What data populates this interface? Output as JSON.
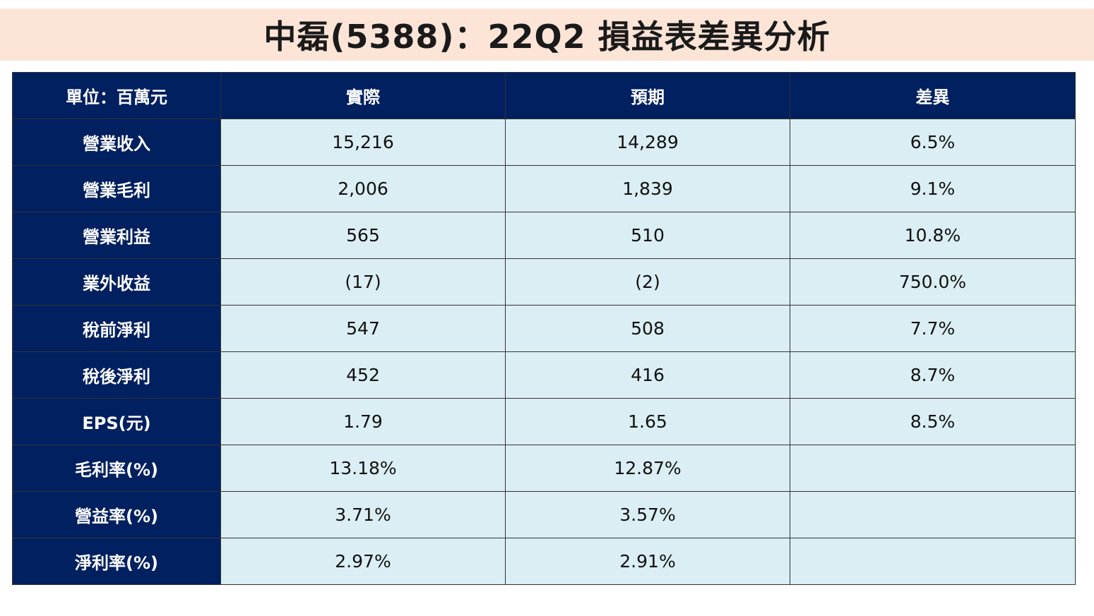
{
  "title": "中磊(5388)：22Q2 損益表差異分析",
  "colors": {
    "title_bg": "#fce4d6",
    "header_bg": "#002060",
    "cell_bg": "#daeef3"
  },
  "table": {
    "headers": [
      "單位：百萬元",
      "實際",
      "預期",
      "差異"
    ],
    "rows": [
      {
        "label": "營業收入",
        "actual": "15,216",
        "expected": "14,289",
        "diff": "6.5%"
      },
      {
        "label": "營業毛利",
        "actual": "2,006",
        "expected": "1,839",
        "diff": "9.1%"
      },
      {
        "label": "營業利益",
        "actual": "565",
        "expected": "510",
        "diff": "10.8%"
      },
      {
        "label": "業外收益",
        "actual": "(17)",
        "expected": "(2)",
        "diff": "750.0%"
      },
      {
        "label": "稅前淨利",
        "actual": "547",
        "expected": "508",
        "diff": "7.7%"
      },
      {
        "label": "稅後淨利",
        "actual": "452",
        "expected": "416",
        "diff": "8.7%"
      },
      {
        "label": "EPS(元)",
        "actual": "1.79",
        "expected": "1.65",
        "diff": "8.5%"
      },
      {
        "label": "毛利率(%)",
        "actual": "13.18%",
        "expected": "12.87%",
        "diff": ""
      },
      {
        "label": "營益率(%)",
        "actual": "3.71%",
        "expected": "3.57%",
        "diff": ""
      },
      {
        "label": "淨利率(%)",
        "actual": "2.97%",
        "expected": "2.91%",
        "diff": ""
      }
    ]
  }
}
